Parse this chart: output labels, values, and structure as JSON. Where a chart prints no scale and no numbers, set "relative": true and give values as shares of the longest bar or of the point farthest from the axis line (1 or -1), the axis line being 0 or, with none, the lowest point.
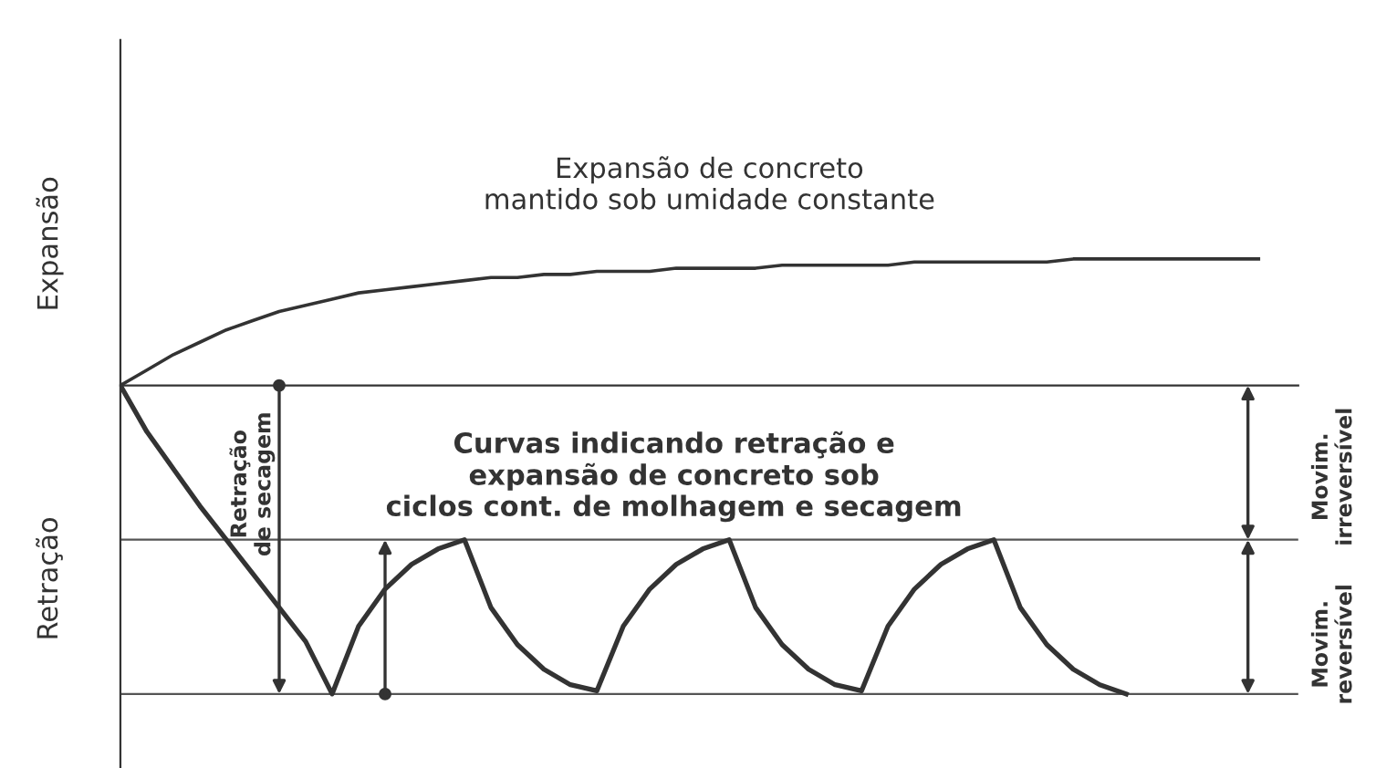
{
  "chart_data": {
    "type": "line",
    "relative": true,
    "categories": [
      null,
      null,
      null,
      null,
      null,
      null,
      null,
      null,
      null,
      null,
      null,
      null,
      null,
      null,
      null,
      null,
      null,
      null,
      null,
      null,
      null,
      null,
      null,
      null,
      null,
      null,
      null,
      null,
      null,
      null,
      null,
      null,
      null,
      null,
      null,
      null,
      null,
      null,
      null,
      null,
      null,
      null,
      null,
      null
    ],
    "series": [
      {
        "color": "#333333",
        "values": [
          0,
          0.05,
          0.1,
          0.14,
          0.18,
          0.21,
          0.24,
          0.26,
          0.28,
          0.3,
          0.31,
          0.32,
          0.33,
          0.34,
          0.35,
          0.35,
          0.36,
          0.36,
          0.37,
          0.37,
          0.37,
          0.38,
          0.38,
          0.38,
          0.38,
          0.39,
          0.39,
          0.39,
          0.39,
          0.39,
          0.4,
          0.4,
          0.4,
          0.4,
          0.4,
          0.4,
          0.41,
          0.41,
          0.41,
          0.41,
          0.41,
          0.41,
          0.41,
          0.41
        ]
      },
      {
        "color": "#333333",
        "values": [
          0,
          -0.15,
          -0.27,
          -0.39,
          -0.5,
          -0.61,
          -0.72,
          -0.83,
          -1,
          -0.78,
          -0.66,
          -0.58,
          -0.53,
          -0.5,
          -0.72,
          -0.84,
          -0.92,
          -0.97,
          -0.99,
          -0.78,
          -0.66,
          -0.58,
          -0.53,
          -0.5,
          -0.72,
          -0.84,
          -0.92,
          -0.97,
          -0.99,
          -0.78,
          -0.66,
          -0.58,
          -0.53,
          -0.5,
          -0.72,
          -0.84,
          -0.92,
          -0.97,
          -1,
          null,
          null,
          null,
          null,
          null
        ]
      }
    ],
    "ref_lines": [
      {
        "axis": "y",
        "value": -0.5,
        "color": "#555555"
      },
      {
        "axis": "y",
        "value": -1,
        "color": "#555555"
      }
    ],
    "marker": "none",
    "line_style": "solid",
    "legend": false,
    "annotations": [
      "Expansão",
      "Retração",
      "Expansão de concreto\nmantido sob umidade constante",
      "Curvas indicando retração e\nexpansão de concreto sob\nciclos cont. de molhagem e secagem",
      "Retração\nde secagem",
      "Movim.\nirreversível",
      "Movim.\nreversível"
    ]
  }
}
